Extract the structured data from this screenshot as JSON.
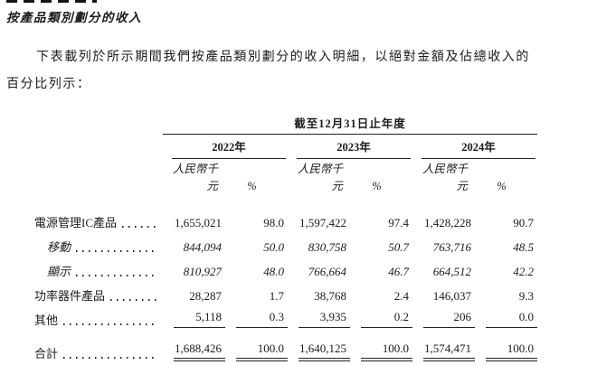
{
  "page": {
    "title": "按產品類別劃分的收入",
    "intro_line1": "下表載列於所示期間我們按產品類別劃分的收入明細，以絕對金額及佔總收入的",
    "intro_line2": "百分比列示："
  },
  "table": {
    "period_header": "截至12月31日止年度",
    "years": [
      "2022年",
      "2023年",
      "2024年"
    ],
    "subheaders": {
      "amount": "人民幣千元",
      "percent": "%"
    },
    "rows": [
      {
        "label": "電源管理IC產品",
        "values": [
          "1,655,021",
          "98.0",
          "1,597,422",
          "97.4",
          "1,428,228",
          "90.7"
        ]
      },
      {
        "label": "移動",
        "values": [
          "844,094",
          "50.0",
          "830,758",
          "50.7",
          "763,716",
          "48.5"
        ]
      },
      {
        "label": "顯示",
        "values": [
          "810,927",
          "48.0",
          "766,664",
          "46.7",
          "664,512",
          "42.2"
        ]
      },
      {
        "label": "功率器件產品",
        "values": [
          "28,287",
          "1.7",
          "38,768",
          "2.4",
          "146,037",
          "9.3"
        ]
      },
      {
        "label": "其他",
        "values": [
          "5,118",
          "0.3",
          "3,935",
          "0.2",
          "206",
          "0.0"
        ]
      },
      {
        "label": "合計",
        "values": [
          "1,688,426",
          "100.0",
          "1,640,125",
          "100.0",
          "1,574,471",
          "100.0"
        ]
      }
    ]
  }
}
